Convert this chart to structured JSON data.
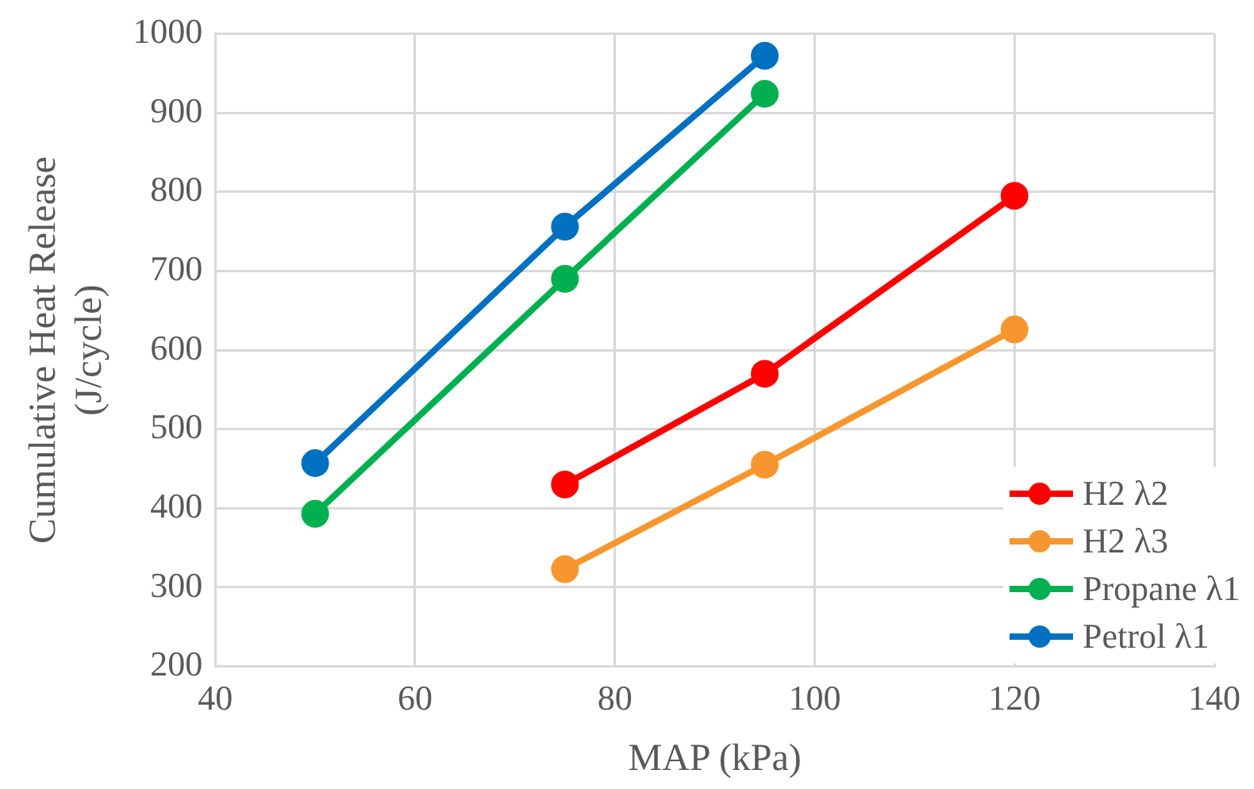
{
  "chart_data": {
    "type": "line",
    "xlabel": "MAP (kPa)",
    "ylabel": "Cumulative Heat Release\n(J/cycle)",
    "xlim": [
      40,
      140
    ],
    "xticks": [
      40,
      60,
      80,
      100,
      120,
      140
    ],
    "ylim": [
      200,
      1000
    ],
    "yticks": [
      200,
      300,
      400,
      500,
      600,
      700,
      800,
      900,
      1000
    ],
    "grid": true,
    "legend": "bottom right",
    "marker": "circle",
    "line_style": "solid",
    "series": [
      {
        "name": "H2 λ2",
        "color": "#ff0000",
        "x": [
          75,
          95,
          120
        ],
        "values": [
          430,
          570,
          795
        ]
      },
      {
        "name": "H2 λ3",
        "color": "#f7962f",
        "x": [
          75,
          95,
          120
        ],
        "values": [
          323,
          455,
          626
        ]
      },
      {
        "name": "Propane λ1",
        "color": "#00b050",
        "x": [
          50,
          75,
          95
        ],
        "values": [
          393,
          690,
          924
        ]
      },
      {
        "name": "Petrol λ1",
        "color": "#0070c0",
        "x": [
          50,
          75,
          95
        ],
        "values": [
          457,
          756,
          972
        ]
      }
    ]
  }
}
